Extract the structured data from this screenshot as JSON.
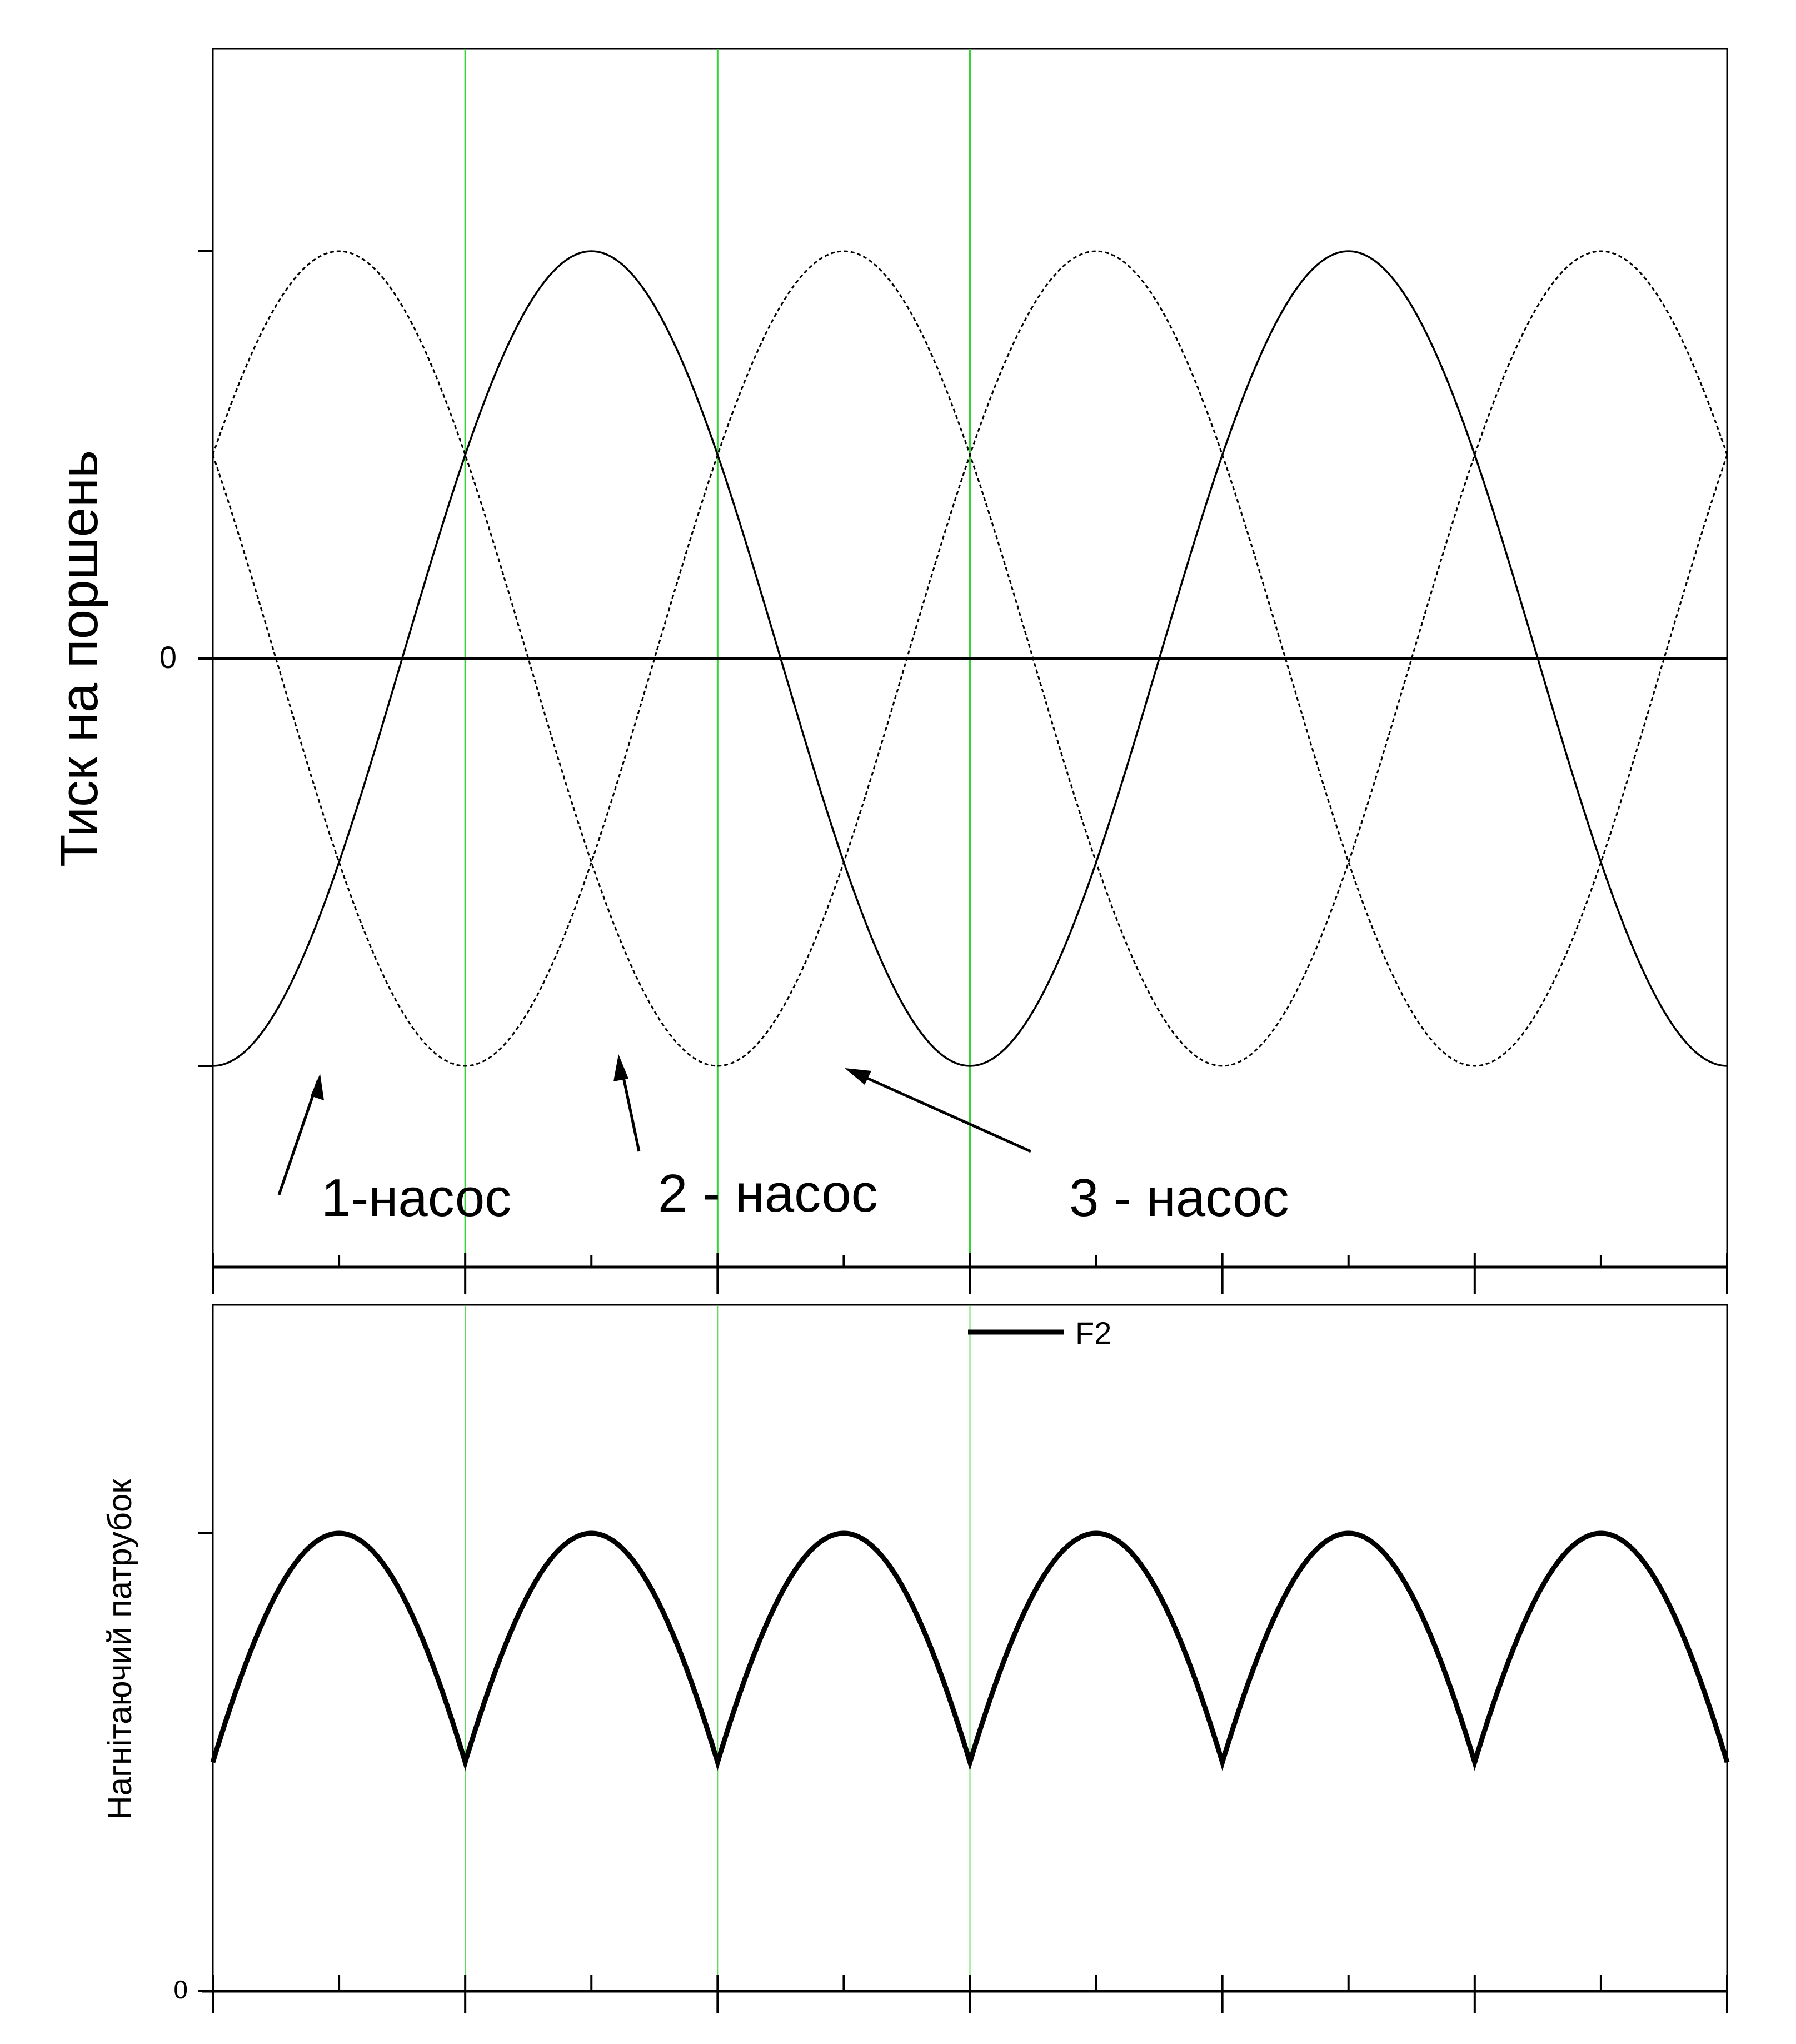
{
  "chart_data": [
    {
      "type": "line",
      "title": "",
      "ylabel": "Тиск на поршень",
      "xlabel": "",
      "x_range": [
        0,
        6
      ],
      "ylim": [
        -1.5,
        1.5
      ],
      "y_ticks": [
        {
          "value": 1,
          "label": ""
        },
        {
          "value": 0,
          "label": "0"
        },
        {
          "value": -1,
          "label": ""
        }
      ],
      "x_ticks": [
        0,
        0.5,
        1,
        1.5,
        2,
        2.5,
        3,
        3.5,
        4,
        4.5,
        5,
        5.5,
        6
      ],
      "vertical_lines": [
        1,
        2,
        3
      ],
      "zero_line": true,
      "series": [
        {
          "label": "1-насос",
          "style": "solid",
          "amplitude": 1,
          "phase_deg": 0
        },
        {
          "label": "2 - насос",
          "style": "dotted",
          "amplitude": 1,
          "phase_deg": 120
        },
        {
          "label": "3 - насос",
          "style": "dotted",
          "amplitude": 1,
          "phase_deg": 240
        }
      ],
      "annotations": [
        {
          "text": "1-насос",
          "points_to": {
            "x": 0.28,
            "y": -1.0
          }
        },
        {
          "text": "2 - насос",
          "points_to": {
            "x": 1.07,
            "y": -0.95
          }
        },
        {
          "text": "3 - насос",
          "points_to": {
            "x": 1.67,
            "y": -1.0
          }
        }
      ]
    },
    {
      "type": "line",
      "title": "",
      "ylabel": "Нагнітаючий патрубок",
      "xlabel": "",
      "x_range": [
        0,
        6
      ],
      "ylim": [
        0,
        1.15
      ],
      "y_ticks": [
        {
          "value": 1,
          "label": ""
        },
        {
          "value": 0,
          "label": "0"
        }
      ],
      "x_ticks": [
        0,
        0.5,
        1,
        1.5,
        2,
        2.5,
        3,
        3.5,
        4,
        4.5,
        5,
        5.5,
        6
      ],
      "vertical_lines": [
        1,
        2,
        3
      ],
      "legend": {
        "position": "top-center",
        "label": "F2"
      },
      "series": [
        {
          "name": "F2",
          "style": "thick",
          "peak": 1.0,
          "trough": 0.5,
          "description": "max of three pump pressures"
        }
      ]
    }
  ]
}
